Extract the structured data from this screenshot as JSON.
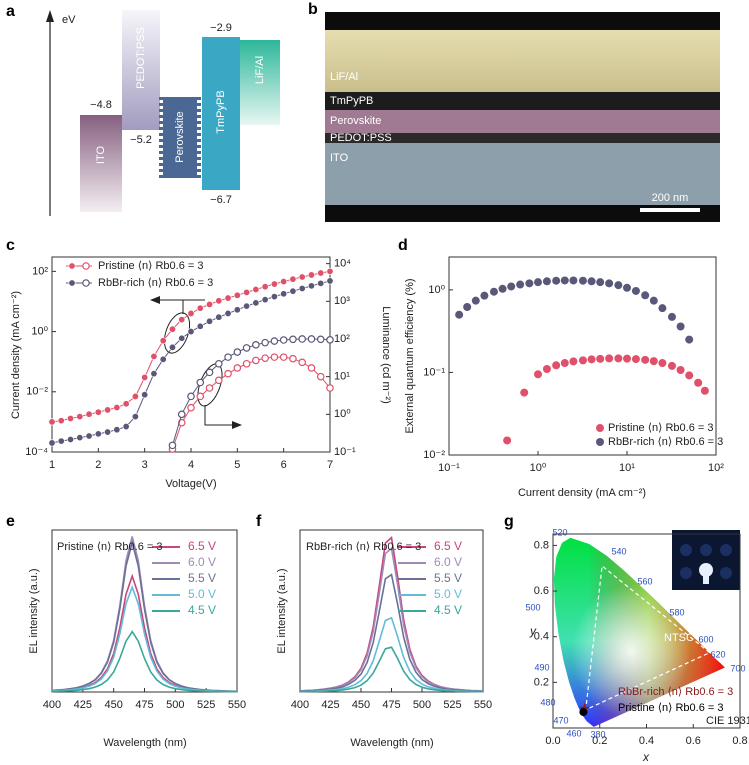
{
  "panel_labels": [
    "a",
    "b",
    "c",
    "d",
    "e",
    "f",
    "g"
  ],
  "energy_diagram": {
    "axis_label": "eV",
    "layers": [
      "ITO",
      "PEDOT:PSS",
      "Perovskite",
      "TmPyPB",
      "LiF/Al"
    ],
    "levels": [
      "−4.8",
      "−5.2",
      "−2.9",
      "−6.7"
    ]
  },
  "sem_image": {
    "layers": [
      "LiF/Al",
      "TmPyPB",
      "Perovskite",
      "PEDOT:PSS",
      "ITO"
    ],
    "scale_bar": "200 nm"
  },
  "chart_data": [
    {
      "type": "line",
      "xlabel": "Voltage(V)",
      "ylabel": "Current density (mA cm⁻²)",
      "y2label": "Luminance (cd m⁻²)",
      "yscale": "log",
      "y2scale": "log",
      "xlim": [
        1,
        7
      ],
      "xticks": [
        1,
        2,
        3,
        4,
        5,
        6,
        7
      ],
      "ylim": [
        0.0001,
        300
      ],
      "yticks": [
        {
          "value": 0.0001,
          "label": "10⁻⁴"
        },
        {
          "value": 0.01,
          "label": "10⁻²"
        },
        {
          "value": 1,
          "label": "10⁰"
        },
        {
          "value": 100,
          "label": "10²"
        }
      ],
      "y2lim": [
        0.1,
        15000
      ],
      "y2ticks": [
        {
          "value": 0.1,
          "label": "10⁻¹"
        },
        {
          "value": 1,
          "label": "10⁰"
        },
        {
          "value": 10,
          "label": "10¹"
        },
        {
          "value": 100,
          "label": "10²"
        },
        {
          "value": 1000,
          "label": "10³"
        },
        {
          "value": 10000,
          "label": "10⁴"
        }
      ],
      "x": [
        1,
        1.2,
        1.4,
        1.6,
        1.8,
        2,
        2.2,
        2.4,
        2.6,
        2.8,
        3,
        3.2,
        3.4,
        3.6,
        3.8,
        4,
        4.2,
        4.4,
        4.6,
        4.8,
        5,
        5.2,
        5.4,
        5.6,
        5.8,
        6,
        6.2,
        6.4,
        6.6,
        6.8,
        7
      ],
      "series": [
        {
          "name": "Pristine ⟨n⟩ Rb0.6 = 3",
          "color": "#e0506a",
          "marker": "filled",
          "values": [
            0.001,
            0.0011,
            0.0013,
            0.0015,
            0.0018,
            0.0021,
            0.0025,
            0.003,
            0.004,
            0.007,
            0.03,
            0.15,
            0.5,
            1.2,
            2.5,
            4,
            6,
            8,
            10.5,
            13,
            16,
            20,
            25,
            31,
            38,
            46,
            55,
            65,
            76,
            88,
            100
          ]
        },
        {
          "name": "RbBr-rich ⟨n⟩ Rb0.6 = 3",
          "color": "#5a5878",
          "marker": "filled",
          "values": [
            0.0002,
            0.00023,
            0.00026,
            0.0003,
            0.00034,
            0.0004,
            0.00046,
            0.00055,
            0.0007,
            0.0015,
            0.008,
            0.04,
            0.12,
            0.3,
            0.6,
            1,
            1.5,
            2.2,
            3,
            4,
            5.3,
            7,
            9,
            11.5,
            14.5,
            18,
            22,
            27,
            33,
            40,
            48
          ]
        },
        {
          "color": "#e0506a",
          "marker": "open",
          "axis": "y2",
          "values": [
            null,
            null,
            null,
            null,
            null,
            null,
            null,
            null,
            null,
            null,
            null,
            null,
            null,
            0.12,
            0.6,
            1.5,
            3,
            5,
            8,
            12,
            17,
            22,
            27,
            31,
            33,
            33,
            30,
            24,
            17,
            10,
            5
          ]
        },
        {
          "color": "#5a5878",
          "marker": "open",
          "axis": "y2",
          "values": [
            null,
            null,
            null,
            null,
            null,
            null,
            null,
            null,
            null,
            null,
            null,
            null,
            null,
            0.15,
            1,
            3,
            7,
            13,
            22,
            33,
            45,
            58,
            70,
            80,
            88,
            94,
            98,
            100,
            100,
            98,
            95
          ]
        }
      ]
    },
    {
      "type": "scatter",
      "xlabel": "Current density (mA cm⁻²)",
      "ylabel": "External quantum efficiency (%)",
      "xscale": "log",
      "yscale": "log",
      "xlim": [
        0.1,
        100
      ],
      "xticks": [
        {
          "value": 0.1,
          "label": "10⁻¹"
        },
        {
          "value": 1,
          "label": "10⁰"
        },
        {
          "value": 10,
          "label": "10¹"
        },
        {
          "value": 100,
          "label": "10²"
        }
      ],
      "ylim": [
        0.01,
        2.5
      ],
      "yticks": [
        {
          "value": 0.01,
          "label": "10⁻²"
        },
        {
          "value": 0.1,
          "label": "10⁻¹"
        },
        {
          "value": 1,
          "label": "10⁰"
        }
      ],
      "series": [
        {
          "name": "Pristine ⟨n⟩ Rb0.6 = 3",
          "color": "#e0506a",
          "x": [
            0.45,
            0.7,
            1,
            1.26,
            1.6,
            2,
            2.5,
            3.2,
            4,
            5,
            6.3,
            8,
            10,
            12.6,
            16,
            20,
            25,
            32,
            40,
            50,
            63,
            75
          ],
          "values": [
            0.015,
            0.057,
            0.095,
            0.11,
            0.122,
            0.13,
            0.136,
            0.14,
            0.144,
            0.146,
            0.148,
            0.148,
            0.147,
            0.145,
            0.142,
            0.137,
            0.13,
            0.12,
            0.107,
            0.092,
            0.075,
            0.06
          ]
        },
        {
          "name": "RbBr-rich ⟨n⟩ Rb0.6 = 3",
          "color": "#5a5878",
          "x": [
            0.13,
            0.16,
            0.2,
            0.25,
            0.32,
            0.4,
            0.5,
            0.63,
            0.8,
            1,
            1.26,
            1.6,
            2,
            2.5,
            3.2,
            4,
            5,
            6.3,
            8,
            10,
            12.6,
            16,
            20,
            25,
            32,
            40,
            50
          ],
          "values": [
            0.5,
            0.62,
            0.74,
            0.85,
            0.95,
            1.03,
            1.1,
            1.16,
            1.2,
            1.24,
            1.27,
            1.29,
            1.3,
            1.3,
            1.29,
            1.27,
            1.24,
            1.2,
            1.14,
            1.06,
            0.97,
            0.86,
            0.74,
            0.6,
            0.47,
            0.36,
            0.25
          ]
        }
      ]
    },
    {
      "type": "line",
      "xlabel": "Wavelength (nm)",
      "ylabel": "EL intensity (a.u.)",
      "annotations": [
        "Pristine ⟨n⟩ Rb0.6 = 3"
      ],
      "xlim": [
        400,
        550
      ],
      "xticks": [
        400,
        425,
        450,
        475,
        500,
        525,
        550
      ],
      "ylim": [
        0,
        1.02
      ],
      "x": [
        400,
        405,
        410,
        415,
        420,
        425,
        430,
        435,
        440,
        445,
        450,
        455,
        460,
        465,
        470,
        475,
        480,
        485,
        490,
        495,
        500,
        505,
        510,
        515,
        520,
        525,
        530,
        535,
        540,
        545,
        550
      ],
      "series": [
        {
          "name": "6.5 V",
          "color": "#c8457e",
          "values": [
            0.007,
            0.009,
            0.012,
            0.015,
            0.02,
            0.028,
            0.04,
            0.059,
            0.091,
            0.146,
            0.242,
            0.404,
            0.615,
            0.73,
            0.615,
            0.404,
            0.242,
            0.146,
            0.091,
            0.059,
            0.04,
            0.028,
            0.02,
            0.015,
            0.012,
            0.009,
            0.007,
            0.006,
            0.005,
            0.004,
            0.003
          ]
        },
        {
          "name": "6.0 V",
          "color": "#a08ab8",
          "values": [
            0.01,
            0.013,
            0.016,
            0.021,
            0.027,
            0.038,
            0.054,
            0.079,
            0.122,
            0.196,
            0.325,
            0.543,
            0.826,
            0.98,
            0.826,
            0.543,
            0.325,
            0.196,
            0.122,
            0.079,
            0.054,
            0.038,
            0.027,
            0.021,
            0.016,
            0.013,
            0.01,
            0.008,
            0.007,
            0.005,
            0.005
          ]
        },
        {
          "name": "5.5 V",
          "color": "#6c7096",
          "values": [
            0.009,
            0.012,
            0.015,
            0.02,
            0.026,
            0.037,
            0.052,
            0.076,
            0.117,
            0.188,
            0.312,
            0.521,
            0.792,
            0.94,
            0.792,
            0.521,
            0.312,
            0.188,
            0.117,
            0.076,
            0.052,
            0.037,
            0.026,
            0.02,
            0.015,
            0.012,
            0.009,
            0.008,
            0.006,
            0.005,
            0.004
          ]
        },
        {
          "name": "5.0 V",
          "color": "#62bcd9",
          "values": [
            0.007,
            0.009,
            0.011,
            0.014,
            0.018,
            0.026,
            0.036,
            0.053,
            0.082,
            0.132,
            0.219,
            0.366,
            0.556,
            0.66,
            0.556,
            0.366,
            0.219,
            0.132,
            0.082,
            0.053,
            0.036,
            0.026,
            0.018,
            0.014,
            0.011,
            0.009,
            0.007,
            0.005,
            0.004,
            0.004,
            0.003
          ]
        },
        {
          "name": "4.5 V",
          "color": "#38a89a",
          "values": [
            0.004,
            0.005,
            0.006,
            0.008,
            0.011,
            0.015,
            0.021,
            0.031,
            0.047,
            0.076,
            0.126,
            0.211,
            0.32,
            0.38,
            0.32,
            0.211,
            0.126,
            0.076,
            0.047,
            0.031,
            0.021,
            0.015,
            0.011,
            0.008,
            0.006,
            0.005,
            0.004,
            0.003,
            0.003,
            0.002,
            0.002
          ]
        }
      ]
    },
    {
      "type": "line",
      "xlabel": "Wavelength (nm)",
      "ylabel": "EL intensity (a.u.)",
      "annotations": [
        "RbBr-rich ⟨n⟩ Rb0.6 = 3"
      ],
      "xlim": [
        400,
        550
      ],
      "xticks": [
        400,
        425,
        450,
        475,
        500,
        525,
        550
      ],
      "ylim": [
        0,
        1.02
      ],
      "x": [
        400,
        405,
        410,
        415,
        420,
        425,
        430,
        435,
        440,
        445,
        450,
        455,
        460,
        465,
        470,
        475,
        480,
        485,
        490,
        495,
        500,
        505,
        510,
        515,
        520,
        525,
        530,
        535,
        540,
        545,
        550
      ],
      "series": [
        {
          "name": "6.5 V",
          "color": "#c8457e",
          "values": [
            0.007,
            0.009,
            0.011,
            0.014,
            0.018,
            0.024,
            0.032,
            0.044,
            0.064,
            0.096,
            0.149,
            0.244,
            0.409,
            0.668,
            0.938,
            0.972,
            0.727,
            0.453,
            0.27,
            0.164,
            0.104,
            0.069,
            0.048,
            0.034,
            0.025,
            0.019,
            0.015,
            0.012,
            0.009,
            0.008,
            0.006
          ]
        },
        {
          "name": "6.0 V",
          "color": "#a08ab8",
          "values": [
            0.007,
            0.008,
            0.01,
            0.013,
            0.017,
            0.022,
            0.03,
            0.041,
            0.06,
            0.089,
            0.139,
            0.227,
            0.38,
            0.621,
            0.872,
            0.904,
            0.676,
            0.421,
            0.251,
            0.153,
            0.097,
            0.064,
            0.045,
            0.032,
            0.023,
            0.018,
            0.014,
            0.011,
            0.008,
            0.007,
            0.006
          ]
        },
        {
          "name": "5.5 V",
          "color": "#6c7096",
          "values": [
            0.005,
            0.007,
            0.008,
            0.011,
            0.014,
            0.018,
            0.024,
            0.033,
            0.049,
            0.073,
            0.113,
            0.185,
            0.311,
            0.508,
            0.713,
            0.739,
            0.553,
            0.344,
            0.205,
            0.125,
            0.079,
            0.052,
            0.036,
            0.026,
            0.019,
            0.014,
            0.011,
            0.009,
            0.007,
            0.006,
            0.005
          ]
        },
        {
          "name": "5.0 V",
          "color": "#62bcd9",
          "values": [
            0.003,
            0.004,
            0.005,
            0.007,
            0.009,
            0.012,
            0.015,
            0.021,
            0.031,
            0.046,
            0.072,
            0.117,
            0.196,
            0.321,
            0.45,
            0.467,
            0.349,
            0.217,
            0.13,
            0.079,
            0.05,
            0.033,
            0.023,
            0.016,
            0.012,
            0.009,
            0.007,
            0.006,
            0.004,
            0.004,
            0.003
          ]
        },
        {
          "name": "4.5 V",
          "color": "#38a89a",
          "values": [
            0.002,
            0.003,
            0.003,
            0.004,
            0.005,
            0.007,
            0.009,
            0.013,
            0.019,
            0.028,
            0.043,
            0.071,
            0.119,
            0.194,
            0.272,
            0.282,
            0.211,
            0.131,
            0.078,
            0.048,
            0.03,
            0.02,
            0.014,
            0.01,
            0.007,
            0.006,
            0.004,
            0.003,
            0.003,
            0.002,
            0.002
          ]
        }
      ]
    },
    {
      "type": "scatter",
      "xlabel": "x",
      "ylabel": "y",
      "annotations": [
        "NTSC",
        "CIE 1931"
      ],
      "wavelength_labels": [
        "520",
        "540",
        "560",
        "580",
        "600",
        "620",
        "700",
        "500",
        "490",
        "480",
        "470",
        "460",
        "380"
      ],
      "xlim": [
        0,
        0.8
      ],
      "xticks": [
        {
          "value": 0,
          "label": "0.0"
        },
        0.2,
        0.4,
        0.6,
        0.8
      ],
      "ylim": [
        0,
        0.85
      ],
      "yticks": [
        0.2,
        0.4,
        0.6,
        0.8
      ],
      "series": [
        {
          "name": "RbBr-rich ⟨n⟩ Rb0.6 = 3",
          "color": "#8b1a1a",
          "marker": "star",
          "x": [
            0.135
          ],
          "values": [
            0.085
          ]
        },
        {
          "name": "Pristine ⟨n⟩ Rb0.6 = 3",
          "color": "#000000",
          "marker": "dot",
          "x": [
            0.13
          ],
          "values": [
            0.07
          ]
        }
      ]
    }
  ]
}
